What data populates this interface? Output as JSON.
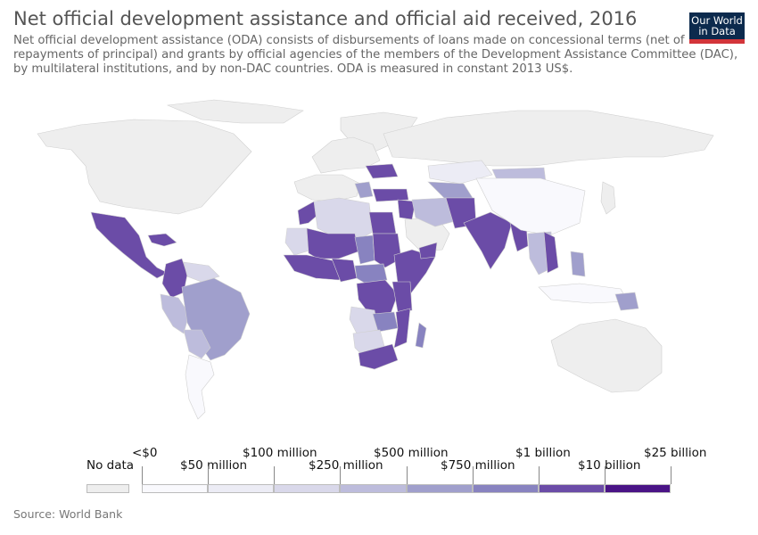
{
  "header": {
    "title": "Net official development assistance and official aid received, 2016",
    "subtitle": "Net official development assistance (ODA) consists of disbursements of loans made on concessional terms (net of repayments of principal) and grants by official agencies of the members of the Development Assistance Committee (DAC), by multilateral institutions, and by non-DAC countries. ODA is measured in constant 2013 US$."
  },
  "logo": {
    "line1": "Our World",
    "line2": "in Data",
    "bg": "#0c2a4d",
    "accent": "#d3353a"
  },
  "legend": {
    "no_data_label": "No data",
    "no_data_color": "#eeeeee",
    "bins": [
      {
        "color": "#f9f9fd"
      },
      {
        "color": "#ececf5"
      },
      {
        "color": "#d9d8ea"
      },
      {
        "color": "#bdbcdc"
      },
      {
        "color": "#a09fcc"
      },
      {
        "color": "#8883c0"
      },
      {
        "color": "#6b4ca7"
      },
      {
        "color": "#4a1486"
      }
    ],
    "labels": [
      "<$0",
      "$50 million",
      "$100 million",
      "$250 million",
      "$500 million",
      "$750 million",
      "$1 billion",
      "$10 billion",
      "$25 billion"
    ]
  },
  "footer": {
    "source": "Source: World Bank"
  }
}
